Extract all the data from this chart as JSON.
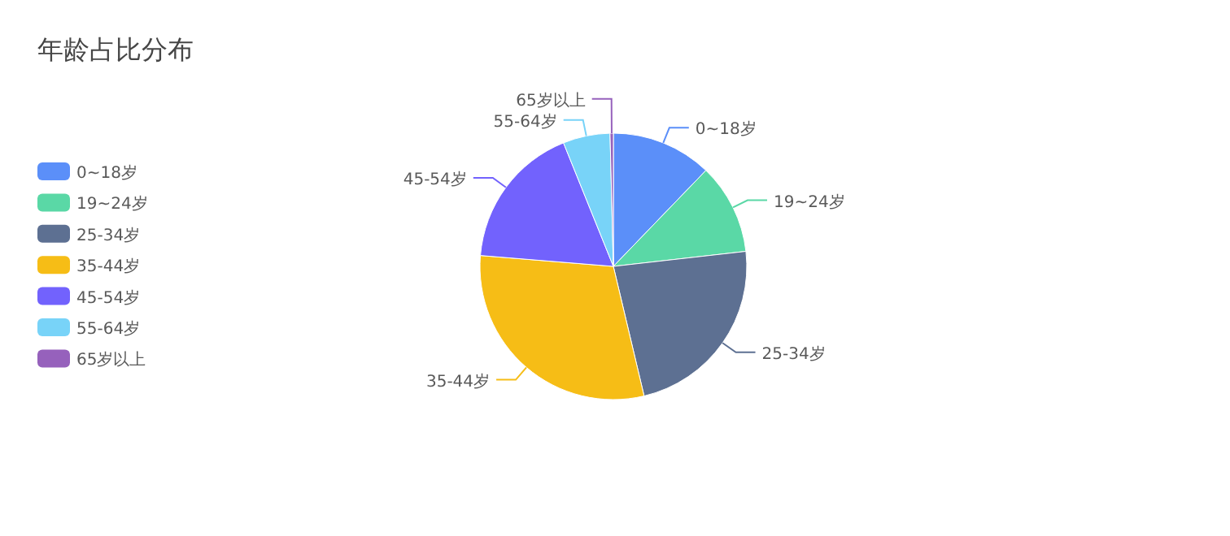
{
  "chart_data": {
    "type": "pie",
    "title": "年龄占比分布",
    "categories": [
      "0~18岁",
      "19~24岁",
      "25-34岁",
      "35-44岁",
      "45-54岁",
      "55-64岁",
      "65岁以上"
    ],
    "values": [
      12.2,
      11.0,
      23.1,
      30.0,
      17.6,
      5.7,
      0.4
    ],
    "colors": [
      "#5b8ff9",
      "#5ad8a6",
      "#5d7092",
      "#f6bd16",
      "#7262fd",
      "#78d3f8",
      "#9661bc"
    ],
    "legend": "left"
  }
}
